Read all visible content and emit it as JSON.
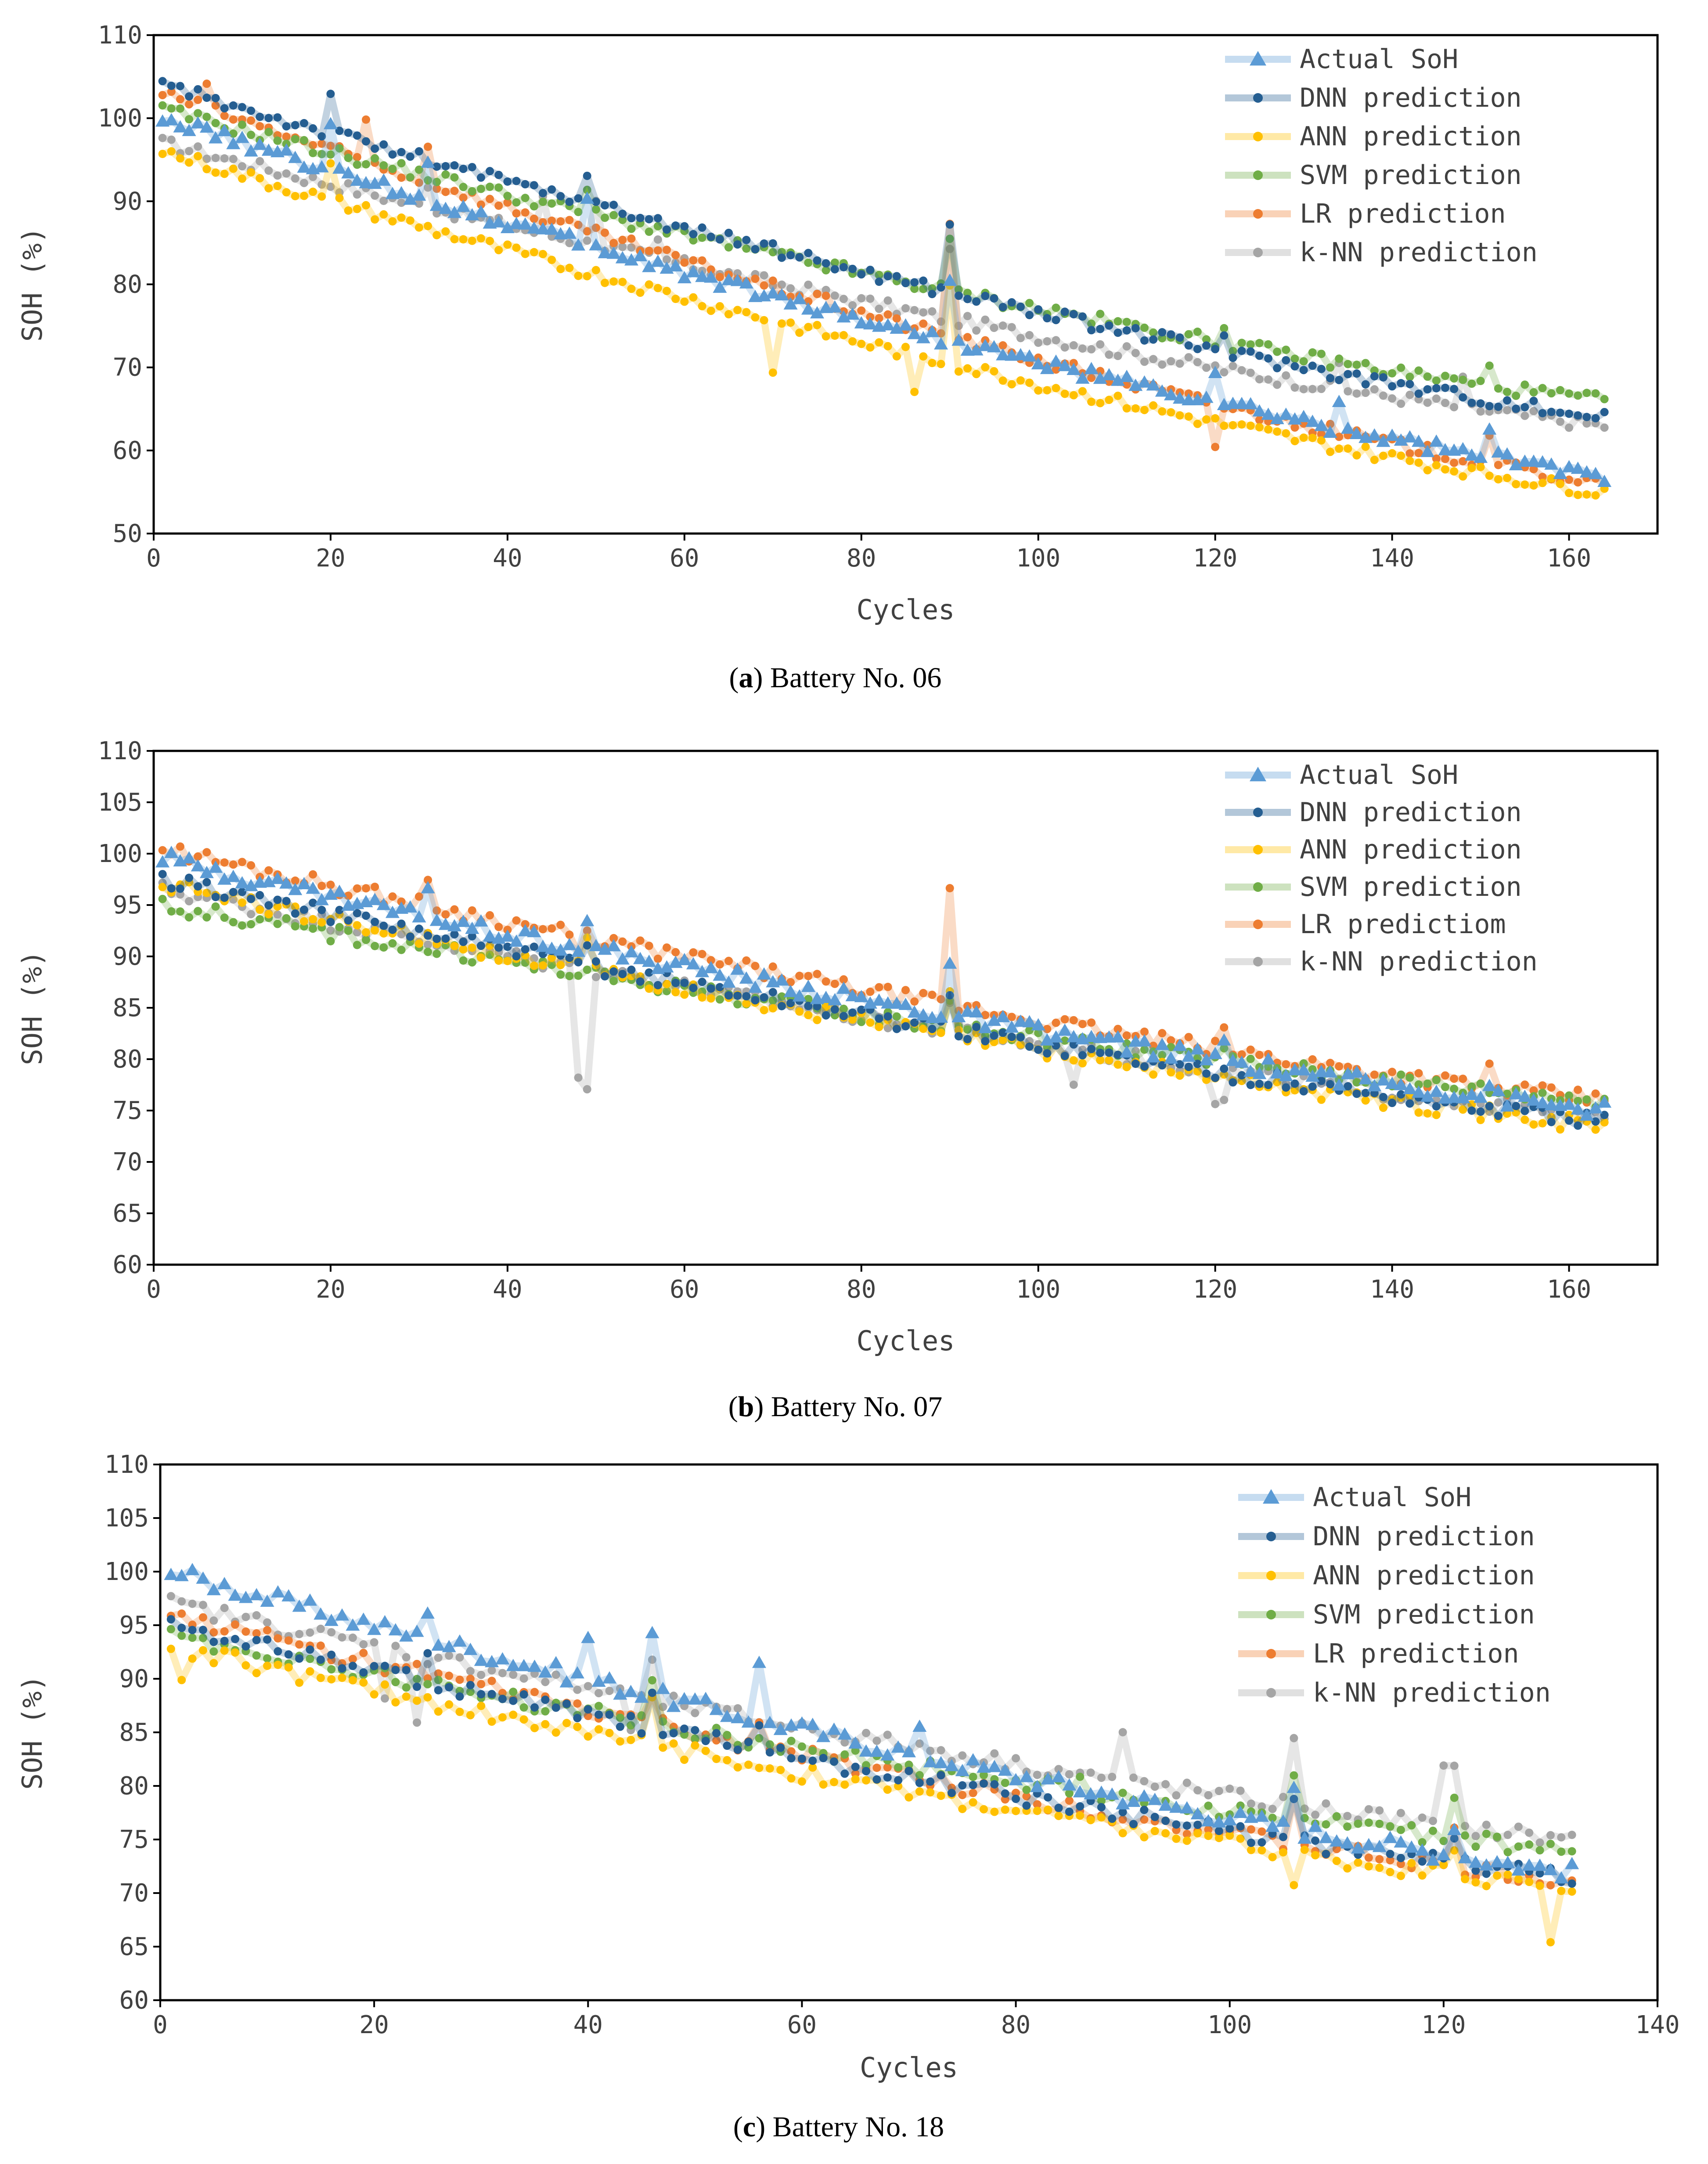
{
  "colors": {
    "actual": "#5B9BD5",
    "dnn": "#255E91",
    "ann": "#FFC000",
    "svm": "#70AD47",
    "lr": "#ED7D31",
    "knn": "#A5A5A5"
  },
  "chart_data": [
    {
      "type": "line",
      "caption_letter": "a",
      "caption_text": "Battery No. 06",
      "xlabel": "Cycles",
      "ylabel": "SOH (%)",
      "xlim": [
        0,
        170
      ],
      "ylim": [
        50,
        110
      ],
      "xticks": [
        0,
        20,
        40,
        60,
        80,
        100,
        120,
        140,
        160
      ],
      "yticks": [
        50,
        60,
        70,
        80,
        90,
        100,
        110
      ],
      "n_cycles": 164,
      "legend": [
        "Actual SoH",
        "DNN prediction",
        "ANN prediction",
        "SVM prediction",
        "LR prediction",
        "k-NN prediction"
      ],
      "series_shapes": {
        "actual": {
          "start": 100,
          "end": 57,
          "spikes": [
            [
              20,
              5
            ],
            [
              31,
              4
            ],
            [
              49,
              5
            ],
            [
              90,
              8
            ],
            [
              120,
              4
            ],
            [
              134,
              3
            ],
            [
              151,
              3
            ]
          ]
        },
        "dnn": {
          "start": 104,
          "end": 64,
          "spikes": [
            [
              20,
              5
            ],
            [
              49,
              4
            ],
            [
              90,
              8
            ],
            [
              121,
              2
            ]
          ]
        },
        "ann": {
          "start": 96,
          "end": 55,
          "spikes": [
            [
              20,
              4
            ],
            [
              70,
              -6
            ],
            [
              86,
              -5
            ],
            [
              90,
              10
            ]
          ]
        },
        "svm": {
          "start": 101,
          "end": 66,
          "spikes": [
            [
              49,
              3
            ],
            [
              90,
              6
            ],
            [
              121,
              2
            ],
            [
              151,
              2
            ]
          ]
        },
        "lr": {
          "start": 103,
          "end": 56,
          "spikes": [
            [
              6,
              3
            ],
            [
              24,
              5
            ],
            [
              31,
              4
            ],
            [
              90,
              14
            ],
            [
              120,
              -5
            ],
            [
              151,
              4
            ]
          ]
        },
        "knn": {
          "start": 97,
          "end": 63,
          "spikes": [
            [
              31,
              3
            ],
            [
              44,
              4
            ],
            [
              50,
              6
            ],
            [
              57,
              2
            ],
            [
              90,
              8
            ],
            [
              134,
              3
            ],
            [
              148,
              3
            ]
          ]
        }
      },
      "series": [
        {
          "name": "Actual SoH",
          "key": "actual",
          "marker": "triangle"
        },
        {
          "name": "DNN prediction",
          "key": "dnn",
          "marker": "circle"
        },
        {
          "name": "ANN prediction",
          "key": "ann",
          "marker": "circle"
        },
        {
          "name": "SVM prediction",
          "key": "svm",
          "marker": "circle"
        },
        {
          "name": "LR prediction",
          "key": "lr",
          "marker": "circle"
        },
        {
          "name": "k-NN prediction",
          "key": "knn",
          "marker": "circle"
        }
      ]
    },
    {
      "type": "line",
      "caption_letter": "b",
      "caption_text": "Battery No. 07",
      "xlabel": "Cycles",
      "ylabel": "SOH (%)",
      "xlim": [
        0,
        170
      ],
      "ylim": [
        60,
        110
      ],
      "xticks": [
        0,
        20,
        40,
        60,
        80,
        100,
        120,
        140,
        160
      ],
      "yticks": [
        60,
        65,
        70,
        75,
        80,
        85,
        90,
        95,
        100,
        105,
        110
      ],
      "n_cycles": 164,
      "legend": [
        "Actual SoH",
        "DNN prediction",
        "ANN prediction",
        "SVM prediction",
        "LR predictiom",
        "k-NN prediction"
      ],
      "series_shapes": {
        "actual": {
          "start": 99.5,
          "end": 75,
          "spikes": [
            [
              31,
              2
            ],
            [
              49,
              3
            ],
            [
              90,
              5
            ],
            [
              121,
              1.5
            ],
            [
              151,
              1.5
            ]
          ]
        },
        "dnn": {
          "start": 97.5,
          "end": 74,
          "spikes": [
            [
              49,
              2
            ],
            [
              90,
              4
            ]
          ]
        },
        "ann": {
          "start": 97,
          "end": 73.5,
          "spikes": [
            [
              49,
              3
            ],
            [
              90,
              4
            ]
          ]
        },
        "svm": {
          "start": 95,
          "end": 76,
          "spikes": [
            [
              90,
              3
            ],
            [
              121,
              1
            ]
          ]
        },
        "lr": {
          "start": 100.5,
          "end": 76,
          "spikes": [
            [
              31,
              2
            ],
            [
              48,
              -2
            ],
            [
              90,
              11
            ],
            [
              121,
              2
            ],
            [
              151,
              2
            ]
          ]
        },
        "knn": {
          "start": 96.5,
          "end": 74.5,
          "spikes": [
            [
              48,
              -10
            ],
            [
              49,
              -11
            ],
            [
              90,
              3
            ],
            [
              104,
              -3
            ],
            [
              120,
              -3
            ],
            [
              121,
              -3
            ]
          ]
        }
      },
      "series": [
        {
          "name": "Actual SoH",
          "key": "actual",
          "marker": "triangle"
        },
        {
          "name": "DNN prediction",
          "key": "dnn",
          "marker": "circle"
        },
        {
          "name": "ANN prediction",
          "key": "ann",
          "marker": "circle"
        },
        {
          "name": "SVM prediction",
          "key": "svm",
          "marker": "circle"
        },
        {
          "name": "LR predictiom",
          "key": "lr",
          "marker": "circle"
        },
        {
          "name": "k-NN prediction",
          "key": "knn",
          "marker": "circle"
        }
      ]
    },
    {
      "type": "line",
      "caption_letter": "c",
      "caption_text": "Battery No. 18",
      "xlabel": "Cycles",
      "ylabel": "SOH (%)",
      "xlim": [
        0,
        140
      ],
      "ylim": [
        60,
        110
      ],
      "xticks": [
        0,
        20,
        40,
        60,
        80,
        100,
        120,
        140
      ],
      "yticks": [
        60,
        65,
        70,
        75,
        80,
        85,
        90,
        95,
        100,
        105,
        110
      ],
      "n_cycles": 132,
      "legend": [
        "Actual SoH",
        "DNN prediction",
        "ANN prediction",
        "SVM prediction",
        "LR prediction",
        "k-NN prediction"
      ],
      "series_shapes": {
        "actual": {
          "start": 100,
          "end": 72,
          "spikes": [
            [
              25,
              3
            ],
            [
              40,
              4
            ],
            [
              46,
              6
            ],
            [
              56,
              5
            ],
            [
              71,
              2
            ],
            [
              106,
              4
            ],
            [
              121,
              3
            ]
          ]
        },
        "dnn": {
          "start": 95,
          "end": 71.5,
          "spikes": [
            [
              25,
              2
            ],
            [
              46,
              4
            ],
            [
              56,
              3
            ],
            [
              106,
              4
            ],
            [
              121,
              3
            ]
          ]
        },
        "ann": {
          "start": 93,
          "end": 70.5,
          "spikes": [
            [
              2,
              -3
            ],
            [
              46,
              4
            ],
            [
              106,
              -3
            ],
            [
              121,
              3
            ],
            [
              130,
              -5
            ]
          ]
        },
        "svm": {
          "start": 94,
          "end": 74,
          "spikes": [
            [
              46,
              4
            ],
            [
              86,
              2
            ],
            [
              106,
              4
            ],
            [
              121,
              3
            ]
          ]
        },
        "lr": {
          "start": 96,
          "end": 71,
          "spikes": [
            [
              46,
              3
            ],
            [
              56,
              3
            ],
            [
              106,
              4
            ],
            [
              121,
              3
            ]
          ]
        },
        "knn": {
          "start": 97,
          "end": 75,
          "spikes": [
            [
              21,
              -4
            ],
            [
              24,
              -6
            ],
            [
              44,
              -3
            ],
            [
              46,
              3
            ],
            [
              90,
              4
            ],
            [
              106,
              6
            ],
            [
              120,
              5
            ],
            [
              121,
              5
            ]
          ]
        }
      },
      "series": [
        {
          "name": "Actual SoH",
          "key": "actual",
          "marker": "triangle"
        },
        {
          "name": "DNN prediction",
          "key": "dnn",
          "marker": "circle"
        },
        {
          "name": "ANN prediction",
          "key": "ann",
          "marker": "circle"
        },
        {
          "name": "SVM prediction",
          "key": "svm",
          "marker": "circle"
        },
        {
          "name": "LR prediction",
          "key": "lr",
          "marker": "circle"
        },
        {
          "name": "k-NN prediction",
          "key": "knn",
          "marker": "circle"
        }
      ]
    }
  ]
}
